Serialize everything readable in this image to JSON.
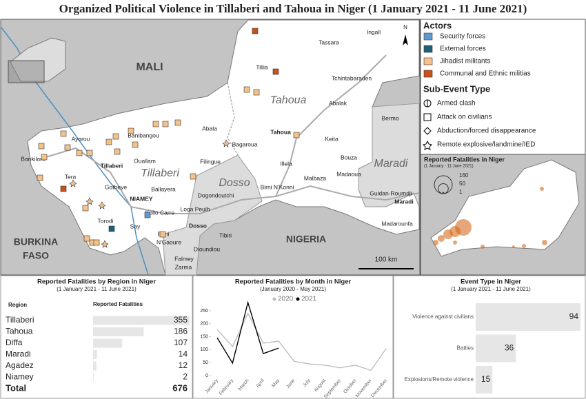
{
  "title": "Organized Political Violence in Tillaberi and Tahoua in Niger (1 January 2021 - 11 June 2021)",
  "map": {
    "countries": [
      "MALI",
      "BURKINA",
      "FASO",
      "NIGERIA"
    ],
    "regions": [
      "Tahoua",
      "Tillaberi",
      "Dosso",
      "Maradi"
    ],
    "places": [
      {
        "name": "Ingall"
      },
      {
        "name": "Tassara"
      },
      {
        "name": "Tillia"
      },
      {
        "name": "Tchintabaraden"
      },
      {
        "name": "Abalak"
      },
      {
        "name": "Bermo"
      },
      {
        "name": "Tahoua",
        "capital": true
      },
      {
        "name": "Keita"
      },
      {
        "name": "Abala"
      },
      {
        "name": "Bagaroua"
      },
      {
        "name": "Ayarou"
      },
      {
        "name": "Banibangou"
      },
      {
        "name": "Bankilare"
      },
      {
        "name": "Tillaberi",
        "capital": true
      },
      {
        "name": "Ouallam"
      },
      {
        "name": "Filingue"
      },
      {
        "name": "Illela"
      },
      {
        "name": "Bouza"
      },
      {
        "name": "Tera"
      },
      {
        "name": "Gotheye"
      },
      {
        "name": "Ballayera"
      },
      {
        "name": "Madaoua"
      },
      {
        "name": "Malbaza"
      },
      {
        "name": "NIAMEY",
        "capital": true
      },
      {
        "name": "Dogondoutchi"
      },
      {
        "name": "Birni N'Konni"
      },
      {
        "name": "Guidan-Roumdji"
      },
      {
        "name": "Maradi",
        "capital": true
      },
      {
        "name": "Kollo Carre"
      },
      {
        "name": "Loga Peulh"
      },
      {
        "name": "Torodi"
      },
      {
        "name": "Say"
      },
      {
        "name": "Dosso",
        "capital": true
      },
      {
        "name": "Madarounfa"
      },
      {
        "name": "Birni"
      },
      {
        "name": "N'Gaoure"
      },
      {
        "name": "Tibiri"
      },
      {
        "name": "Dioundiou"
      },
      {
        "name": "Falmey"
      },
      {
        "name": "Zarma"
      }
    ],
    "scale": "100 km",
    "north": "N",
    "legend": {
      "actors_title": "Actors",
      "actors": [
        {
          "name": "Security forces",
          "color": "#5b9bd5"
        },
        {
          "name": "External forces",
          "color": "#1f5f7a"
        },
        {
          "name": "Jihadist militants",
          "color": "#f5c28a"
        },
        {
          "name": "Communal and Ethnic militias",
          "color": "#c8501a"
        }
      ],
      "types_title": "Sub-Event Type",
      "types": [
        "Armed clash",
        "Attack on civilians",
        "Abduction/forced disappearance",
        "Remote explosive/landmine/IED"
      ]
    },
    "inset": {
      "title": "Reported Fatalities in Niger",
      "subtitle": "(1 January - 11 June 2021)",
      "sizes": [
        160,
        50,
        1
      ]
    }
  },
  "chart_data": [
    {
      "type": "hbar",
      "title": "Reported Fatalities by Region in Niger",
      "subtitle": "(1 January 2021 - 11 June 2021)",
      "category_header": "Region",
      "value_header": "Reported Fatalities",
      "categories": [
        "Tillaberi",
        "Tahoua",
        "Diffa",
        "Maradi",
        "Agadez",
        "Niamey"
      ],
      "values": [
        355,
        186,
        107,
        14,
        12,
        2
      ],
      "color": "#e6e6e6",
      "total": {
        "label": "Total",
        "value": 676
      }
    },
    {
      "type": "line",
      "title": "Reported Fatalities by Month in Niger",
      "subtitle": "(January 2020 - May 2021)",
      "categories": [
        "January",
        "February",
        "March",
        "April",
        "May",
        "June",
        "July",
        "August",
        "September",
        "October",
        "November",
        "December"
      ],
      "series": [
        {
          "name": "2020",
          "color": "#bdbdbd",
          "values": [
            178,
            112,
            240,
            125,
            133,
            55,
            45,
            40,
            30,
            40,
            20,
            105
          ]
        },
        {
          "name": "2021",
          "color": "#000000",
          "values": [
            146,
            48,
            282,
            85,
            106,
            null,
            null,
            null,
            null,
            null,
            null,
            null
          ]
        }
      ],
      "ylim": [
        0,
        290
      ],
      "yticks": [
        0,
        50,
        100,
        150,
        200,
        250
      ]
    },
    {
      "type": "hbar2",
      "title": "Event Type in Niger",
      "subtitle": "(1 January 2021 - 11 June 2021)",
      "categories": [
        "Violence against civilians",
        "Battles",
        "Explosions/Remote violence"
      ],
      "values": [
        94,
        36,
        15
      ],
      "color": "#e6e6e6"
    }
  ]
}
